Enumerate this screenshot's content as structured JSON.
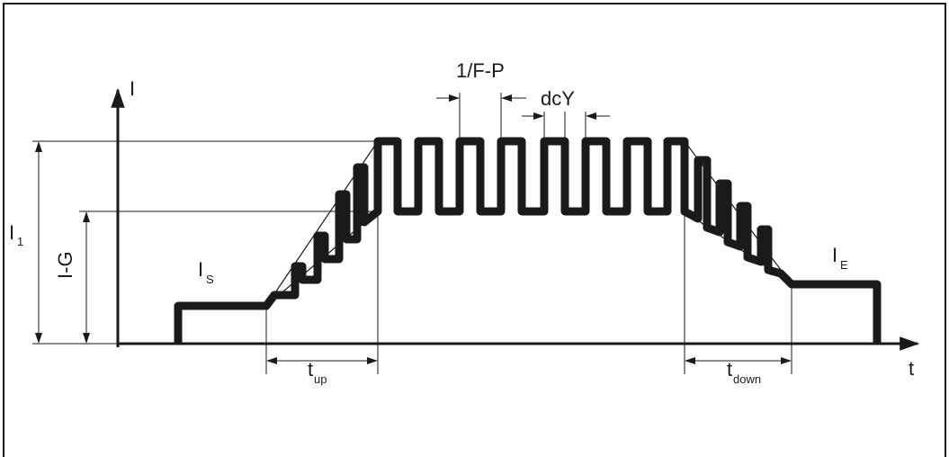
{
  "labels": {
    "y_axis": "I",
    "x_axis": "t",
    "i1_main": "I",
    "i1_sub": "1",
    "ig": "I-G",
    "is_main": "I",
    "is_sub": "S",
    "ie_main": "I",
    "ie_sub": "E",
    "pulse_period": "1/F-P",
    "duty_cycle": "dcY",
    "tup_main": "t",
    "tup_sub": "up",
    "tdown_main": "t",
    "tdown_sub": "down"
  },
  "colors": {
    "stroke": "#1a1a1a",
    "background": "#ffffff"
  }
}
